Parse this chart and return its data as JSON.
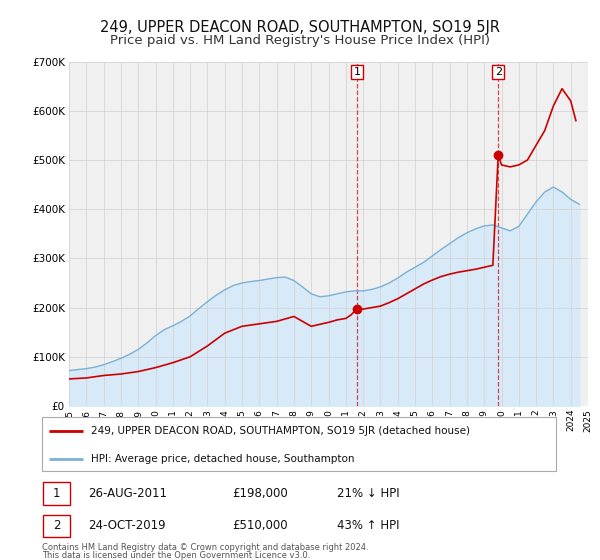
{
  "title": "249, UPPER DEACON ROAD, SOUTHAMPTON, SO19 5JR",
  "subtitle": "Price paid vs. HM Land Registry's House Price Index (HPI)",
  "ylim": [
    0,
    700000
  ],
  "xlim_start": 1995,
  "xlim_end": 2025,
  "yticks": [
    0,
    100000,
    200000,
    300000,
    400000,
    500000,
    600000,
    700000
  ],
  "ytick_labels": [
    "£0",
    "£100K",
    "£200K",
    "£300K",
    "£400K",
    "£500K",
    "£600K",
    "£700K"
  ],
  "xticks": [
    1995,
    1996,
    1997,
    1998,
    1999,
    2000,
    2001,
    2002,
    2003,
    2004,
    2005,
    2006,
    2007,
    2008,
    2009,
    2010,
    2011,
    2012,
    2013,
    2014,
    2015,
    2016,
    2017,
    2018,
    2019,
    2020,
    2021,
    2022,
    2023,
    2024,
    2025
  ],
  "marker1_x": 2011.65,
  "marker1_y": 198000,
  "marker1_label": "1",
  "marker1_date": "26-AUG-2011",
  "marker1_price": "£198,000",
  "marker1_hpi": "21% ↓ HPI",
  "marker2_x": 2019.81,
  "marker2_y": 510000,
  "marker2_label": "2",
  "marker2_date": "24-OCT-2019",
  "marker2_price": "£510,000",
  "marker2_hpi": "43% ↑ HPI",
  "price_line_color": "#cc0000",
  "hpi_line_color": "#7bb0d4",
  "hpi_fill_color": "#d8eaf7",
  "background_color": "#f0f0f0",
  "grid_color": "#d0d0d0",
  "title_fontsize": 10.5,
  "subtitle_fontsize": 9.5,
  "legend1_label": "249, UPPER DEACON ROAD, SOUTHAMPTON, SO19 5JR (detached house)",
  "legend2_label": "HPI: Average price, detached house, Southampton",
  "footer1": "Contains HM Land Registry data © Crown copyright and database right 2024.",
  "footer2": "This data is licensed under the Open Government Licence v3.0.",
  "hpi_years": [
    1995.0,
    1995.5,
    1996.0,
    1996.5,
    1997.0,
    1997.5,
    1998.0,
    1998.5,
    1999.0,
    1999.5,
    2000.0,
    2000.5,
    2001.0,
    2001.5,
    2002.0,
    2002.5,
    2003.0,
    2003.5,
    2004.0,
    2004.5,
    2005.0,
    2005.5,
    2006.0,
    2006.5,
    2007.0,
    2007.5,
    2008.0,
    2008.5,
    2009.0,
    2009.5,
    2010.0,
    2010.5,
    2011.0,
    2011.5,
    2012.0,
    2012.5,
    2013.0,
    2013.5,
    2014.0,
    2014.5,
    2015.0,
    2015.5,
    2016.0,
    2016.5,
    2017.0,
    2017.5,
    2018.0,
    2018.5,
    2019.0,
    2019.5,
    2020.0,
    2020.5,
    2021.0,
    2021.5,
    2022.0,
    2022.5,
    2023.0,
    2023.5,
    2024.0,
    2024.5
  ],
  "hpi_values": [
    72000,
    74000,
    76000,
    79000,
    84000,
    90000,
    97000,
    105000,
    115000,
    128000,
    143000,
    155000,
    163000,
    172000,
    183000,
    198000,
    212000,
    225000,
    236000,
    245000,
    250000,
    253000,
    255000,
    258000,
    261000,
    262000,
    255000,
    242000,
    228000,
    222000,
    224000,
    228000,
    232000,
    234000,
    234000,
    237000,
    242000,
    250000,
    260000,
    272000,
    282000,
    292000,
    305000,
    318000,
    330000,
    342000,
    352000,
    360000,
    366000,
    368000,
    362000,
    356000,
    365000,
    390000,
    415000,
    435000,
    445000,
    435000,
    420000,
    410000
  ],
  "price_years": [
    1995.0,
    1996.0,
    1997.0,
    1998.0,
    1999.0,
    2000.0,
    2001.0,
    2002.0,
    2003.0,
    2004.0,
    2005.0,
    2006.0,
    2007.0,
    2008.0,
    2009.0,
    2010.0,
    2010.5,
    2011.0,
    2011.3,
    2011.65,
    2012.0,
    2012.5,
    2013.0,
    2013.5,
    2014.0,
    2014.5,
    2015.0,
    2015.5,
    2016.0,
    2016.5,
    2017.0,
    2017.5,
    2018.0,
    2018.5,
    2019.0,
    2019.5,
    2019.81,
    2020.0,
    2020.5,
    2021.0,
    2021.5,
    2022.0,
    2022.5,
    2023.0,
    2023.5,
    2024.0,
    2024.3
  ],
  "price_values": [
    55000,
    57000,
    62000,
    65000,
    70000,
    78000,
    88000,
    100000,
    122000,
    148000,
    162000,
    167000,
    172000,
    182000,
    162000,
    170000,
    175000,
    178000,
    185000,
    198000,
    197000,
    200000,
    203000,
    210000,
    218000,
    228000,
    238000,
    248000,
    256000,
    263000,
    268000,
    272000,
    275000,
    278000,
    282000,
    286000,
    510000,
    490000,
    486000,
    490000,
    500000,
    530000,
    560000,
    610000,
    645000,
    620000,
    580000
  ]
}
